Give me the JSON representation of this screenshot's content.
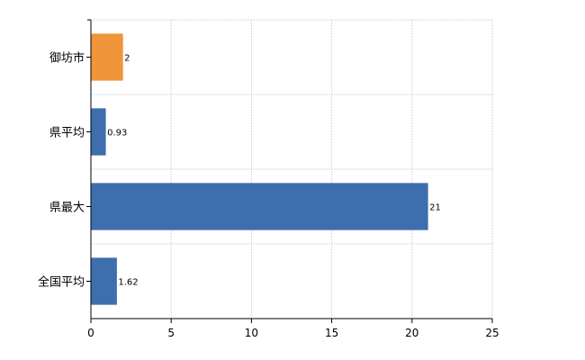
{
  "chart_data": {
    "type": "bar",
    "orientation": "horizontal",
    "categories": [
      "御坊市",
      "県平均",
      "県最大",
      "全国平均"
    ],
    "values": [
      2,
      0.93,
      21,
      1.62
    ],
    "data_labels": [
      "2",
      "0.93",
      "21",
      "1.62"
    ],
    "colors": [
      "#f0953a",
      "#3e6ead",
      "#3e6ead",
      "#3e6ead"
    ],
    "xlim": [
      0,
      25
    ],
    "xticks": [
      0,
      5,
      10,
      15,
      20,
      25
    ],
    "grid": true,
    "legend": "none"
  }
}
